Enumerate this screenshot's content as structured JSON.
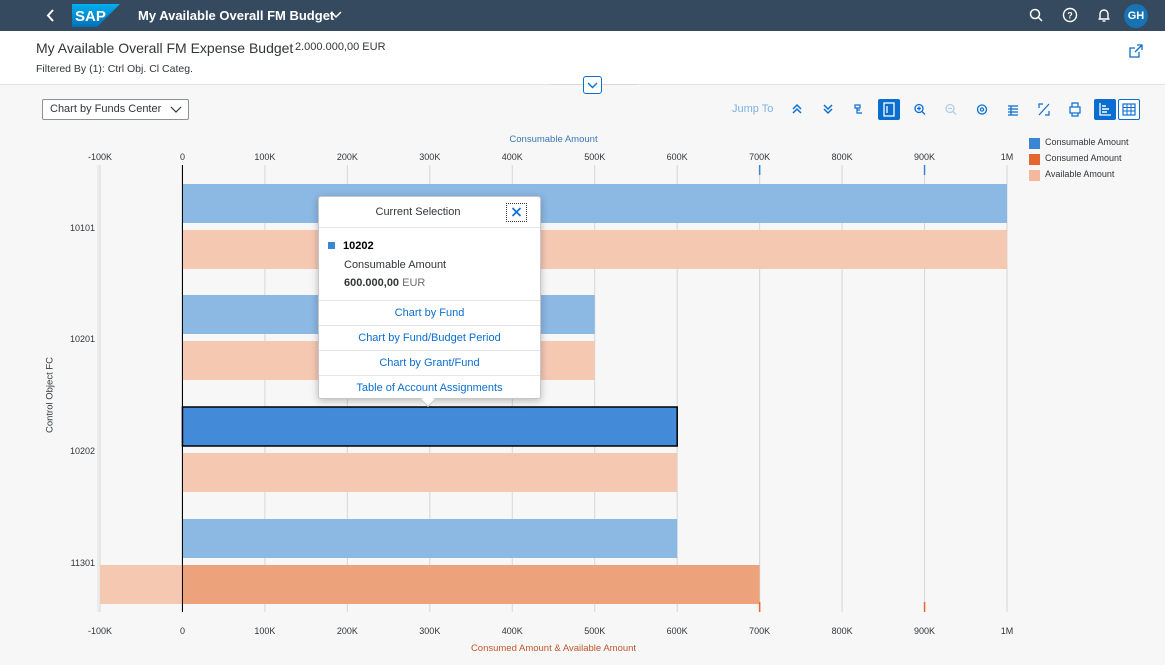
{
  "shell": {
    "back_icon": "chevron-left-icon",
    "logo_text": "SAP",
    "app_title": "My Available Overall FM Budget",
    "avatar_initials": "GH",
    "icons": [
      "search-icon",
      "help-icon",
      "bell-icon"
    ]
  },
  "header": {
    "title": "My Available Overall FM Expense Budget",
    "amount": "2.000.000,00 EUR",
    "filter": "Filtered By (1): Ctrl Obj. Cl Categ."
  },
  "toolbar": {
    "view_select": "Chart by Funds Center",
    "jump_to": "Jump To",
    "buttons": [
      "drill-up-icon",
      "drill-down-icon",
      "hierarchy-icon",
      "legend-icon",
      "zoom-in-icon",
      "zoom-out-icon",
      "settings-icon",
      "table-icon",
      "fullscreen-icon",
      "print-icon",
      "bar-chart-icon",
      "grid-icon"
    ]
  },
  "colors": {
    "consumable": "#8cb8e4",
    "consumable_selected": "#438bd8",
    "consumed": "#eca37c",
    "available": "#f5c8b2",
    "brand_blue": "#0a6ed1",
    "shell_bg": "#354a5f"
  },
  "chart_data": {
    "type": "bar",
    "orientation": "horizontal",
    "top_axis_title": "Consumable Amount",
    "bottom_axis_title": "Consumed Amount & Available Amount",
    "y_axis_title": "Control Object FC",
    "x_range": [
      -100000,
      1000000
    ],
    "tick_values": [
      -100000,
      0,
      100000,
      200000,
      300000,
      400000,
      500000,
      600000,
      700000,
      800000,
      900000,
      1000000
    ],
    "tick_labels": [
      "-100K",
      "0",
      "100K",
      "200K",
      "300K",
      "400K",
      "500K",
      "600K",
      "700K",
      "800K",
      "900K",
      "1M"
    ],
    "categories": [
      "10101",
      "10201",
      "10202",
      "11301"
    ],
    "series": [
      {
        "name": "Consumable Amount",
        "values": [
          1000000,
          500000,
          600000,
          600000
        ]
      },
      {
        "name": "Consumed Amount",
        "values": [
          0,
          0,
          0,
          700000
        ]
      },
      {
        "name": "Available Amount",
        "values": [
          1000000,
          500000,
          600000,
          -100000
        ]
      }
    ],
    "legend_position": "top-right",
    "selected": {
      "category": "10202",
      "series": "Consumable Amount"
    }
  },
  "popover": {
    "title": "Current Selection",
    "item_id": "10202",
    "measure": "Consumable Amount",
    "value_number": "600.000,00",
    "value_unit": "EUR",
    "links": [
      "Chart by Fund",
      "Chart by Fund/Budget Period",
      "Chart by Grant/Fund",
      "Table of Account Assignments"
    ]
  }
}
